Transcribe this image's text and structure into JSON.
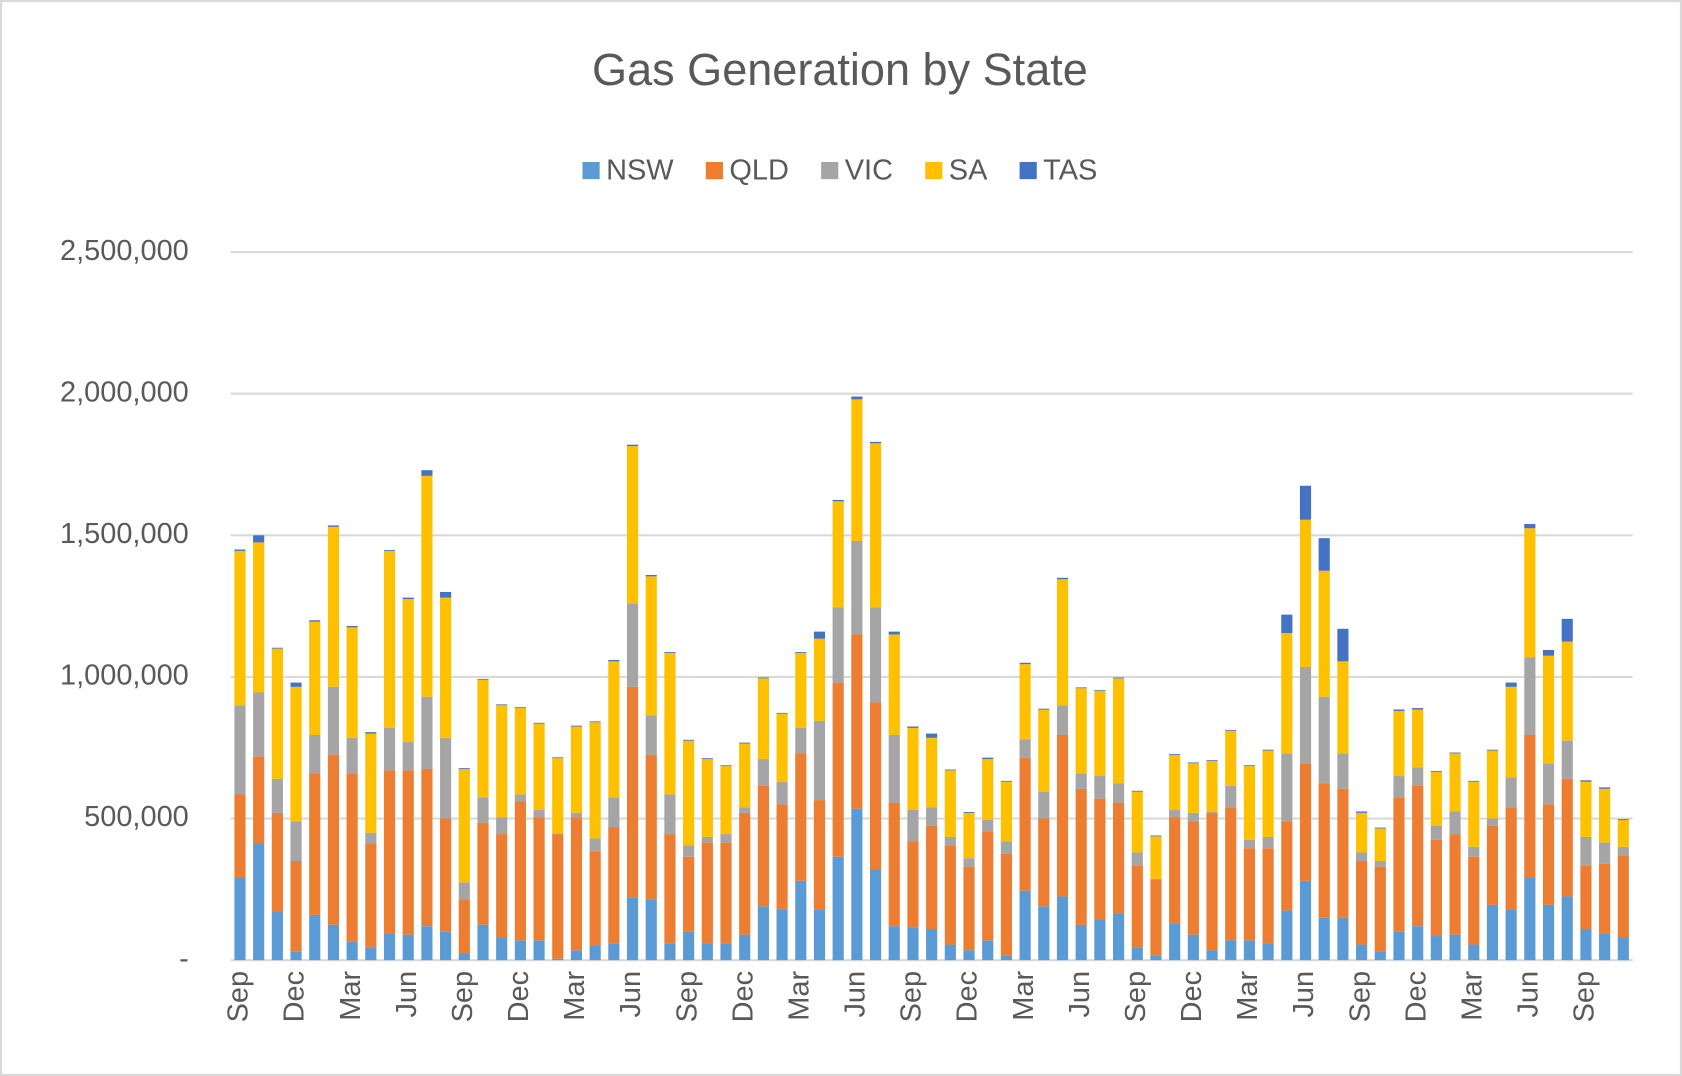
{
  "chart_data": {
    "type": "bar",
    "stacked": true,
    "title": "Gas Generation by State",
    "categories": [
      "Sep",
      null,
      null,
      "Dec",
      null,
      null,
      "Mar",
      null,
      null,
      "Jun",
      null,
      null,
      "Sep",
      null,
      null,
      "Dec",
      null,
      null,
      "Mar",
      null,
      null,
      "Jun",
      null,
      null,
      "Sep",
      null,
      null,
      "Dec",
      null,
      null,
      "Mar",
      null,
      null,
      "Jun",
      null,
      null,
      "Sep",
      null,
      null,
      "Dec",
      null,
      null,
      "Mar",
      null,
      null,
      "Jun",
      null,
      null,
      "Sep",
      null,
      null,
      "Dec",
      null,
      null,
      "Mar",
      null,
      null,
      "Jun",
      null,
      null,
      "Sep",
      null,
      null,
      "Dec",
      null,
      null,
      "Mar",
      null,
      null,
      "Jun",
      null,
      null,
      "Sep",
      null,
      null
    ],
    "series": [
      {
        "name": "NSW",
        "color": "#5b9bd5",
        "values": [
          290000,
          410000,
          170000,
          30000,
          160000,
          125000,
          65000,
          45000,
          95000,
          90000,
          120000,
          100000,
          25000,
          125000,
          80000,
          70000,
          70000,
          5000,
          35000,
          50000,
          60000,
          220000,
          215000,
          60000,
          100000,
          60000,
          60000,
          90000,
          190000,
          180000,
          280000,
          180000,
          365000,
          535000,
          320000,
          120000,
          115000,
          110000,
          55000,
          35000,
          70000,
          15000,
          245000,
          190000,
          225000,
          125000,
          145000,
          165000,
          45000,
          15000,
          130000,
          90000,
          35000,
          70000,
          70000,
          60000,
          175000,
          280000,
          150000,
          150000,
          55000,
          30000,
          100000,
          120000,
          85000,
          90000,
          55000,
          195000,
          180000,
          290000,
          195000,
          225000,
          110000,
          95000,
          80000
        ]
      },
      {
        "name": "QLD",
        "color": "#ed7d31",
        "values": [
          295000,
          310000,
          350000,
          320000,
          500000,
          600000,
          595000,
          365000,
          575000,
          580000,
          555000,
          400000,
          190000,
          360000,
          365000,
          490000,
          435000,
          440000,
          470000,
          335000,
          410000,
          745000,
          510000,
          385000,
          265000,
          355000,
          355000,
          430000,
          425000,
          370000,
          450000,
          385000,
          615000,
          615000,
          590000,
          435000,
          305000,
          365000,
          350000,
          295000,
          385000,
          360000,
          470000,
          310000,
          570000,
          480000,
          425000,
          390000,
          290000,
          270000,
          375000,
          400000,
          485000,
          470000,
          325000,
          335000,
          315000,
          415000,
          475000,
          455000,
          295000,
          300000,
          475000,
          495000,
          340000,
          355000,
          310000,
          280000,
          360000,
          505000,
          355000,
          415000,
          225000,
          245000,
          290000
        ]
      },
      {
        "name": "VIC",
        "color": "#a5a5a5",
        "values": [
          315000,
          225000,
          120000,
          140000,
          135000,
          240000,
          125000,
          40000,
          150000,
          100000,
          255000,
          285000,
          60000,
          90000,
          60000,
          25000,
          25000,
          3000,
          15000,
          45000,
          105000,
          295000,
          140000,
          140000,
          40000,
          20000,
          30000,
          20000,
          95000,
          80000,
          90000,
          280000,
          265000,
          330000,
          335000,
          240000,
          110000,
          65000,
          30000,
          30000,
          40000,
          45000,
          65000,
          95000,
          105000,
          55000,
          80000,
          70000,
          45000,
          2000,
          25000,
          30000,
          3000,
          75000,
          30000,
          40000,
          240000,
          340000,
          305000,
          125000,
          30000,
          20000,
          75000,
          65000,
          50000,
          80000,
          35000,
          25000,
          105000,
          275000,
          145000,
          135000,
          100000,
          75000,
          30000
        ]
      },
      {
        "name": "SA",
        "color": "#ffc000",
        "values": [
          545000,
          530000,
          460000,
          475000,
          400000,
          565000,
          390000,
          350000,
          625000,
          505000,
          780000,
          495000,
          400000,
          415000,
          395000,
          305000,
          305000,
          265000,
          305000,
          410000,
          480000,
          555000,
          490000,
          500000,
          370000,
          275000,
          240000,
          225000,
          285000,
          240000,
          265000,
          290000,
          375000,
          500000,
          580000,
          355000,
          290000,
          245000,
          235000,
          160000,
          215000,
          210000,
          265000,
          290000,
          445000,
          300000,
          300000,
          370000,
          215000,
          150000,
          195000,
          175000,
          180000,
          195000,
          260000,
          305000,
          425000,
          520000,
          445000,
          325000,
          140000,
          115000,
          230000,
          205000,
          190000,
          205000,
          230000,
          240000,
          320000,
          455000,
          380000,
          350000,
          195000,
          190000,
          95000
        ]
      },
      {
        "name": "TAS",
        "color": "#4472c4",
        "values": [
          5000,
          25000,
          3000,
          15000,
          5000,
          5000,
          5000,
          5000,
          3000,
          5000,
          20000,
          20000,
          3000,
          3000,
          3000,
          3000,
          3000,
          3000,
          3000,
          3000,
          5000,
          5000,
          5000,
          3000,
          3000,
          3000,
          3000,
          3000,
          3000,
          3000,
          3000,
          25000,
          5000,
          10000,
          5000,
          10000,
          5000,
          15000,
          3000,
          3000,
          5000,
          3000,
          5000,
          3000,
          5000,
          3000,
          3000,
          3000,
          3000,
          3000,
          3000,
          3000,
          3000,
          3000,
          3000,
          3000,
          65000,
          120000,
          115000,
          115000,
          5000,
          3000,
          5000,
          5000,
          3000,
          3000,
          3000,
          3000,
          15000,
          15000,
          20000,
          80000,
          5000,
          5000,
          3000
        ]
      }
    ],
    "ylim": [
      0,
      2500000
    ],
    "yticks": [
      {
        "value": 0,
        "label": "-"
      },
      {
        "value": 500000,
        "label": "500,000"
      },
      {
        "value": 1000000,
        "label": "1,000,000"
      },
      {
        "value": 1500000,
        "label": "1,500,000"
      },
      {
        "value": 2000000,
        "label": "2,000,000"
      },
      {
        "value": 2500000,
        "label": "2,500,000"
      }
    ],
    "grid": true,
    "legend": "top"
  }
}
